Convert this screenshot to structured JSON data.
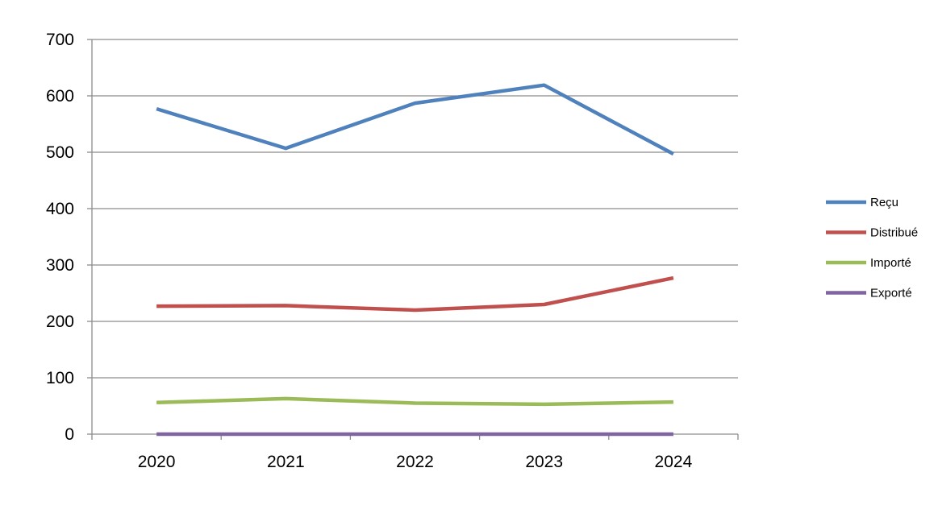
{
  "chart_data": {
    "type": "line",
    "categories": [
      "2020",
      "2021",
      "2022",
      "2023",
      "2024"
    ],
    "ylim": [
      0,
      700
    ],
    "yticks": [
      0,
      100,
      200,
      300,
      400,
      500,
      600,
      700
    ],
    "grid": true,
    "legend": "right",
    "series": [
      {
        "name": "Reçu",
        "color": "#4F81BD",
        "values": [
          577,
          507,
          587,
          619,
          497
        ]
      },
      {
        "name": "Distribué",
        "color": "#C0504D",
        "values": [
          227,
          228,
          220,
          230,
          277
        ]
      },
      {
        "name": "Importé",
        "color": "#9BBB59",
        "values": [
          56,
          63,
          55,
          53,
          57
        ]
      },
      {
        "name": "Exporté",
        "color": "#8064A2",
        "values": [
          0,
          0,
          0,
          0,
          0
        ]
      }
    ]
  }
}
